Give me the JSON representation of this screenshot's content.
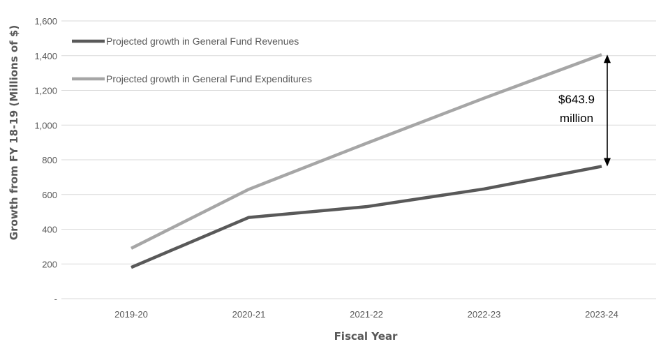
{
  "chart_data": {
    "type": "line",
    "title": "",
    "xlabel": "Fiscal Year",
    "ylabel": "Growth from FY 18-19 (Millions of $)",
    "categories": [
      "2019-20",
      "2020-21",
      "2021-22",
      "2022-23",
      "2023-24"
    ],
    "ylim": [
      0,
      1600
    ],
    "yticks": [
      0,
      200,
      400,
      600,
      800,
      1000,
      1200,
      1400,
      1600
    ],
    "ytick_labels": [
      "-",
      "200",
      "400",
      "600",
      "800",
      "1,000",
      "1,200",
      "1,400",
      "1,600"
    ],
    "grid": true,
    "legend_position": "top-left",
    "series": [
      {
        "name": "Projected growth in General Fund Revenues",
        "color": "#595959",
        "values": [
          180,
          468,
          530,
          632,
          762
        ]
      },
      {
        "name": "Projected growth in General Fund Expenditures",
        "color": "#a6a6a6",
        "values": [
          290,
          630,
          895,
          1155,
          1406
        ]
      }
    ],
    "annotation": {
      "lines": [
        "$643.9",
        "million"
      ],
      "category": "2023-24",
      "from": 762,
      "to": 1406
    }
  }
}
